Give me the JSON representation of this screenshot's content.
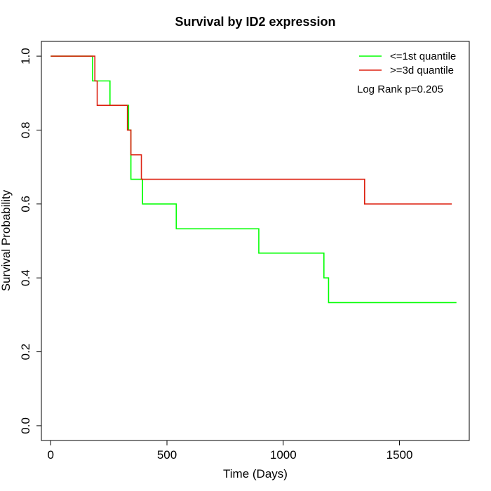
{
  "chart_data": {
    "type": "line",
    "title": "Survival by ID2 expression",
    "xlabel": "Time (Days)",
    "ylabel": "Survival Probability",
    "xlim": [
      -40,
      1800
    ],
    "ylim": [
      -0.04,
      1.04
    ],
    "xticks": [
      0,
      500,
      1000,
      1500
    ],
    "xtick_labels": [
      "0",
      "500",
      "1000",
      "1500"
    ],
    "yticks": [
      0.0,
      0.2,
      0.4,
      0.6,
      0.8,
      1.0
    ],
    "ytick_labels": [
      "0.0",
      "0.2",
      "0.4",
      "0.6",
      "0.8",
      "1.0"
    ],
    "grid": false,
    "legend_position": "top-right",
    "annotation": "Log Rank p=0.205",
    "series": [
      {
        "name": "<=1st quantile",
        "color": "#00ff00",
        "step": true,
        "x": [
          0,
          180,
          255,
          335,
          345,
          395,
          540,
          895,
          1175,
          1195,
          1745
        ],
        "y": [
          1.0,
          0.933,
          0.867,
          0.8,
          0.667,
          0.6,
          0.533,
          0.467,
          0.4,
          0.333,
          0.333
        ]
      },
      {
        "name": ">=3d quantile",
        "color": "#dd2010",
        "step": true,
        "x": [
          0,
          190,
          200,
          330,
          345,
          390,
          1350,
          1725
        ],
        "y": [
          1.0,
          0.933,
          0.867,
          0.8,
          0.733,
          0.667,
          0.6,
          0.6
        ]
      }
    ]
  }
}
